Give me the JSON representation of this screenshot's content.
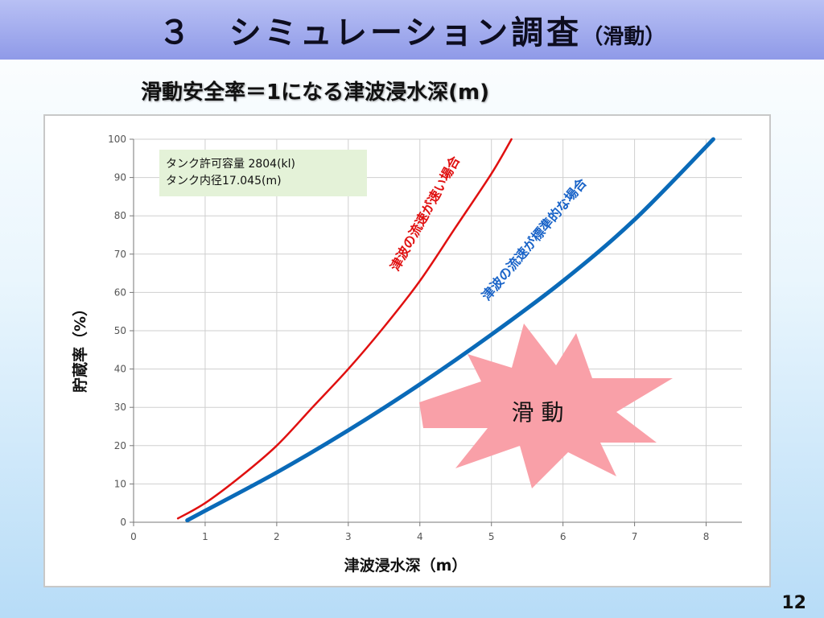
{
  "slide": {
    "title": "３　シミュレーション調査",
    "title_suffix": "（滑動）",
    "subtitle": "滑動安全率＝1になる津波浸水深(m)",
    "page_number": "12"
  },
  "chart_data": {
    "type": "line",
    "title": "",
    "xlabel": "津波浸水深（m）",
    "ylabel": "貯蔵率（%）",
    "xlim": [
      0,
      8.5
    ],
    "ylim": [
      0,
      100
    ],
    "x_ticks": [
      0,
      1,
      2,
      3,
      4,
      5,
      6,
      7,
      8
    ],
    "y_ticks": [
      0,
      10,
      20,
      30,
      40,
      50,
      60,
      70,
      80,
      90,
      100
    ],
    "grid": true,
    "info_box": [
      "タンク許可容量 2804(kl)",
      "タンク内径17.045(m)"
    ],
    "series": [
      {
        "name": "津波の流速が速い場合",
        "color": "#e01010",
        "x": [
          0.62,
          1.0,
          1.5,
          2.0,
          2.5,
          3.0,
          3.5,
          4.0,
          4.5,
          5.0,
          5.28
        ],
        "y": [
          1,
          5,
          12,
          20,
          30,
          40,
          51,
          63,
          77,
          91,
          100
        ]
      },
      {
        "name": "津波の流速が標準的な場合",
        "color": "#0a6ab8",
        "x": [
          0.75,
          1.0,
          2.0,
          3.0,
          4.0,
          5.0,
          6.0,
          7.0,
          8.1
        ],
        "y": [
          0.5,
          3,
          13,
          24,
          36,
          49,
          63,
          79,
          100
        ]
      }
    ],
    "burst_label": "滑 動",
    "burst_color": "#f9a0a8"
  }
}
